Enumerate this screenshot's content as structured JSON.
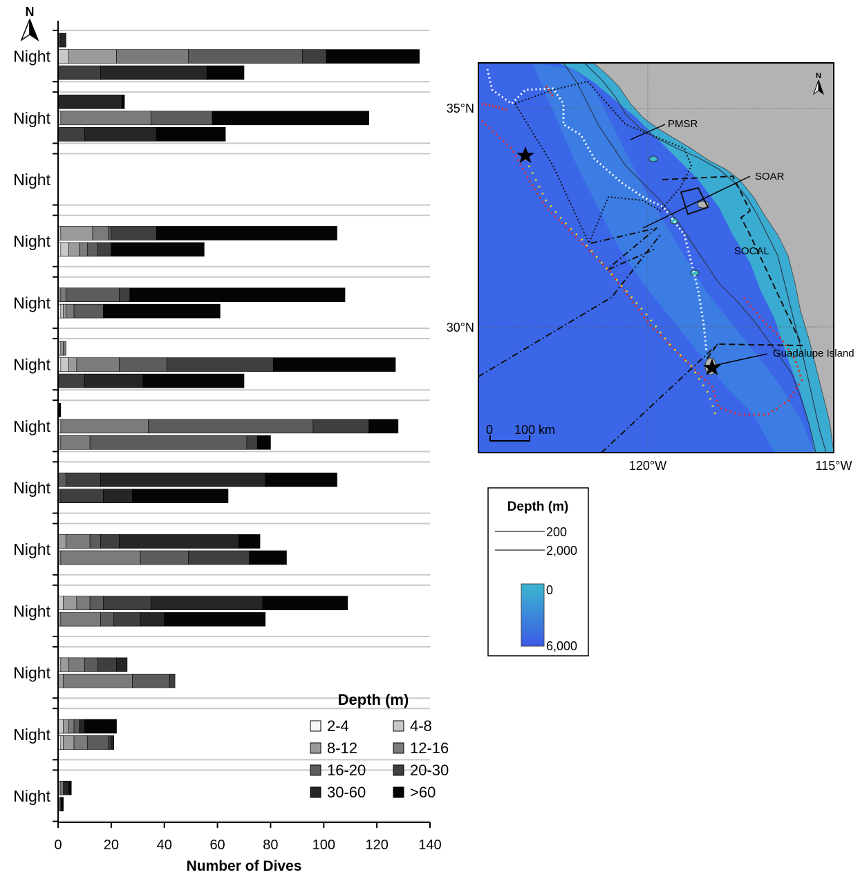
{
  "chart_data": [
    {
      "type": "bar",
      "orientation": "horizontal",
      "stacked": true,
      "xlabel": "Number of Dives",
      "xlim": [
        0,
        140
      ],
      "xticks": [
        0,
        20,
        40,
        60,
        80,
        100,
        120,
        140
      ],
      "row_labels": [
        "Night",
        "Night",
        "Night",
        "Night",
        "Night",
        "Night",
        "Night",
        "Night",
        "Night",
        "Night",
        "Night",
        "Night",
        "Night"
      ],
      "series": [
        {
          "name": "2-4",
          "color": "#f5f5f5"
        },
        {
          "name": "4-8",
          "color": "#c8c8c8"
        },
        {
          "name": "8-12",
          "color": "#9b9b9b"
        },
        {
          "name": "12-16",
          "color": "#7b7b7b"
        },
        {
          "name": "16-20",
          "color": "#5c5c5c"
        },
        {
          "name": "20-30",
          "color": "#3f3f3f"
        },
        {
          "name": "30-60",
          "color": "#262626"
        },
        {
          "name": ">60",
          "color": "#050505"
        }
      ],
      "groups": [
        [
          [
            0,
            0,
            0,
            0,
            0,
            1,
            2,
            0
          ],
          [
            0,
            4,
            18,
            27,
            43,
            9,
            0,
            35
          ],
          [
            0,
            0,
            0,
            0,
            0,
            16,
            40,
            14
          ]
        ],
        [
          [
            0,
            0,
            0,
            0,
            0,
            0,
            24,
            1
          ],
          [
            0,
            1,
            0,
            34,
            23,
            0,
            0,
            59
          ],
          [
            0,
            0,
            0,
            0,
            0,
            10,
            27,
            26
          ]
        ],
        [
          [
            0,
            0,
            0,
            0,
            0,
            0,
            0,
            0
          ],
          [
            0,
            0,
            0,
            0,
            0,
            0,
            0,
            0
          ]
        ],
        [
          [
            0,
            1,
            12,
            6,
            1,
            17,
            0,
            68
          ],
          [
            1,
            3,
            4,
            3,
            4,
            5,
            0,
            35
          ]
        ],
        [
          [
            0,
            0,
            1,
            2,
            20,
            4,
            0,
            81
          ],
          [
            1,
            1,
            1,
            3,
            11,
            0,
            0,
            44
          ]
        ],
        [
          [
            0,
            1,
            1,
            1,
            0,
            0,
            0,
            0
          ],
          [
            1,
            3,
            3,
            16,
            18,
            40,
            0,
            46
          ],
          [
            0,
            0,
            0,
            0,
            0,
            10,
            22,
            38
          ]
        ],
        [
          [
            0,
            0,
            0,
            0,
            0,
            0,
            0,
            1
          ],
          [
            0,
            1,
            0,
            33,
            62,
            21,
            0,
            11
          ],
          [
            0,
            0,
            1,
            11,
            59,
            4,
            0,
            5
          ]
        ],
        [
          [
            0,
            0,
            0,
            0,
            3,
            13,
            62,
            27
          ],
          [
            0,
            0,
            0,
            0,
            1,
            16,
            11,
            36
          ]
        ],
        [
          [
            0,
            0,
            3,
            9,
            4,
            7,
            45,
            8
          ],
          [
            0,
            0,
            1,
            30,
            18,
            23,
            0,
            14
          ]
        ],
        [
          [
            0,
            2,
            5,
            5,
            5,
            18,
            42,
            32
          ],
          [
            0,
            0,
            1,
            15,
            5,
            10,
            9,
            38
          ]
        ],
        [
          [
            0,
            1,
            3,
            6,
            5,
            7,
            4,
            0
          ],
          [
            0,
            0,
            2,
            26,
            14,
            2,
            0,
            0
          ]
        ],
        [
          [
            0,
            2,
            2,
            2,
            2,
            0,
            2,
            12
          ],
          [
            1,
            1,
            4,
            5,
            8,
            1,
            1,
            0
          ]
        ],
        [
          [
            0,
            0,
            1,
            1,
            0,
            0,
            2,
            1
          ],
          [
            0,
            0,
            0,
            0,
            1,
            0,
            0,
            1
          ]
        ]
      ]
    },
    {
      "type": "map",
      "labels": [
        "PMSR",
        "SOAR",
        "SOCAL",
        "Guadalupe Island"
      ],
      "lat_labels": [
        "35°N",
        "30°N"
      ],
      "lon_labels": [
        "120°W",
        "115°W"
      ],
      "scale_labels": [
        "0",
        "100 km"
      ],
      "depth_legend": {
        "title": "Depth (m)",
        "contours": [
          "200",
          "2,000"
        ],
        "colorbar": {
          "min_label": "0",
          "max_label": "6,000",
          "color_shallow": "#3cb6cf",
          "color_deep": "#3c5ae6"
        }
      },
      "colors": {
        "land": "#b3b3b3",
        "ocean": "#3b66e8",
        "shelf": "#3cb9cc"
      }
    }
  ],
  "compass": {
    "north_label": "N"
  }
}
